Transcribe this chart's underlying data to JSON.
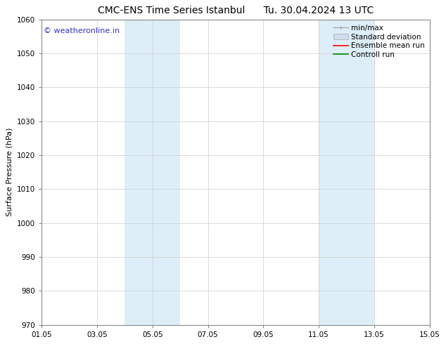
{
  "title_left": "CMC-ENS Time Series Istanbul",
  "title_right": "Tu. 30.04.2024 13 UTC",
  "ylabel": "Surface Pressure (hPa)",
  "ylim": [
    970,
    1060
  ],
  "yticks": [
    970,
    980,
    990,
    1000,
    1010,
    1020,
    1030,
    1040,
    1050,
    1060
  ],
  "xtick_labels": [
    "01.05",
    "03.05",
    "05.05",
    "07.05",
    "09.05",
    "11.05",
    "13.05",
    "15.05"
  ],
  "xtick_positions": [
    0,
    2,
    4,
    6,
    8,
    10,
    12,
    14
  ],
  "xlim": [
    0,
    14
  ],
  "shaded_regions": [
    {
      "start": 3.0,
      "end": 5.0,
      "color": "#ddeef8"
    },
    {
      "start": 10.0,
      "end": 12.0,
      "color": "#ddeef8"
    }
  ],
  "watermark_text": "© weatheronline.in",
  "watermark_color": "#3333cc",
  "watermark_fontsize": 8,
  "background_color": "#ffffff",
  "grid_color": "#cccccc",
  "title_fontsize": 10,
  "tick_fontsize": 7.5,
  "ylabel_fontsize": 8,
  "legend_fontsize": 7.5,
  "spine_color": "#888888",
  "legend_items": [
    {
      "label": "min/max",
      "color": "#aaaaaa"
    },
    {
      "label": "Standard deviation",
      "color": "#ccdded"
    },
    {
      "label": "Ensemble mean run",
      "color": "red"
    },
    {
      "label": "Controll run",
      "color": "green"
    }
  ]
}
